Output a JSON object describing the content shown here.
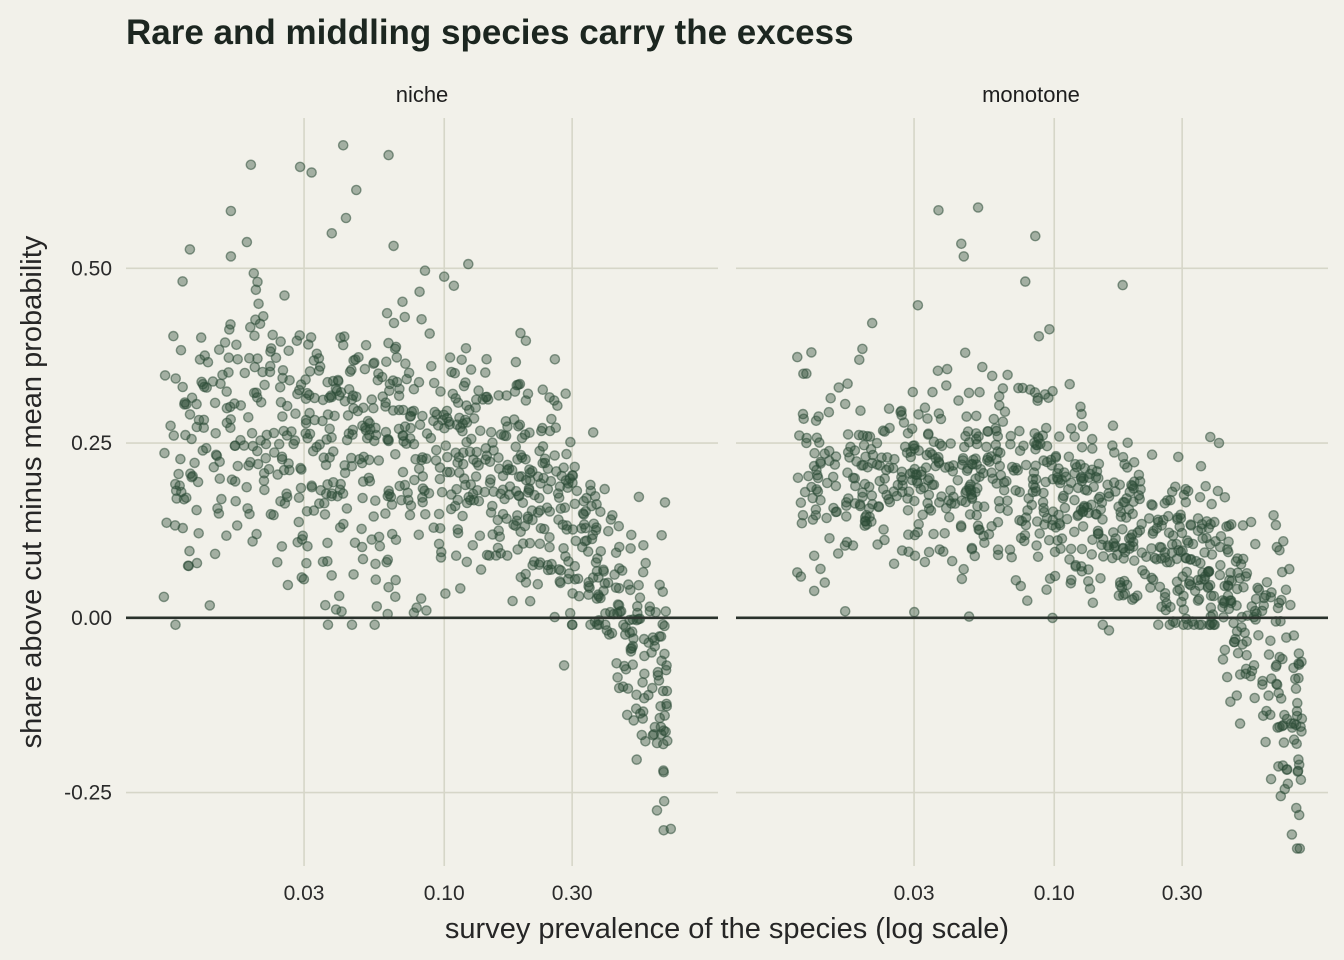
{
  "chart_data": {
    "type": "scatter",
    "title": "Rare and middling species carry the excess",
    "xlabel": "survey prevalence of the species (log scale)",
    "ylabel": "share above cut minus mean probability",
    "x_scale": "log10",
    "xlim": [
      0.0065,
      1.05
    ],
    "ylim": [
      -0.355,
      0.715
    ],
    "x_ticks": [
      0.03,
      0.1,
      0.3
    ],
    "x_tick_labels": [
      "0.03",
      "0.10",
      "0.30"
    ],
    "y_ticks": [
      -0.25,
      0,
      0.25,
      0.5
    ],
    "y_tick_labels": [
      "-0.25",
      "0.00",
      "0.25",
      "0.50"
    ],
    "reference_line_y": 0,
    "grid": true,
    "legend": "none",
    "colors": {
      "point": "#2e4d38",
      "background": "#f2f1ea",
      "grid": "#d6d6c8",
      "reference_line": "#2a322c"
    },
    "panels": [
      {
        "label": "niche",
        "points_note": "about 900 species; values listed are representative readings",
        "highlight_points": [
          {
            "x": 0.019,
            "y": 0.648
          },
          {
            "x": 0.029,
            "y": 0.645
          },
          {
            "x": 0.032,
            "y": 0.637
          },
          {
            "x": 0.042,
            "y": 0.676
          },
          {
            "x": 0.062,
            "y": 0.662
          },
          {
            "x": 0.047,
            "y": 0.612
          },
          {
            "x": 0.043,
            "y": 0.572
          },
          {
            "x": 0.016,
            "y": 0.582
          },
          {
            "x": 0.016,
            "y": 0.517
          },
          {
            "x": 0.123,
            "y": 0.506
          },
          {
            "x": 0.1,
            "y": 0.488
          },
          {
            "x": 0.28,
            "y": -0.068
          },
          {
            "x": 0.6,
            "y": -0.168
          },
          {
            "x": 0.67,
            "y": -0.163
          },
          {
            "x": 0.7,
            "y": -0.302
          },
          {
            "x": 0.52,
            "y": -0.13
          },
          {
            "x": 0.009,
            "y": 0.03
          },
          {
            "x": 0.036,
            "y": 0.018
          }
        ]
      },
      {
        "label": "monotone",
        "points_note": "about 900 species; values listed are representative readings",
        "highlight_points": [
          {
            "x": 0.037,
            "y": 0.583
          },
          {
            "x": 0.052,
            "y": 0.587
          },
          {
            "x": 0.045,
            "y": 0.535
          },
          {
            "x": 0.085,
            "y": 0.546
          },
          {
            "x": 0.046,
            "y": 0.517
          },
          {
            "x": 0.18,
            "y": 0.476
          },
          {
            "x": 0.078,
            "y": 0.481
          },
          {
            "x": 0.031,
            "y": 0.447
          },
          {
            "x": 0.011,
            "y": 0.373
          },
          {
            "x": 0.011,
            "y": 0.065
          },
          {
            "x": 0.16,
            "y": -0.018
          },
          {
            "x": 0.8,
            "y": -0.272
          },
          {
            "x": 0.82,
            "y": -0.282
          },
          {
            "x": 0.77,
            "y": -0.31
          },
          {
            "x": 0.7,
            "y": -0.255
          },
          {
            "x": 0.81,
            "y": -0.22
          }
        ]
      }
    ]
  }
}
